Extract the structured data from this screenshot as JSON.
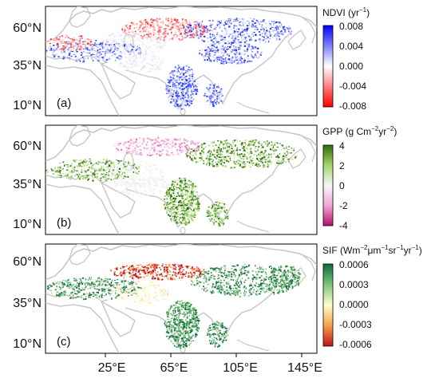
{
  "figure": {
    "panels": [
      {
        "id": "a",
        "label": "(a)",
        "variable": "NDVI",
        "colorbar_title": "NDVI (yr",
        "colorbar_title_sup": "−1",
        "colorbar_title_end": ")",
        "colorbar_ticks": [
          "0.008",
          "0.004",
          "0.000",
          "-0.004",
          "-0.008"
        ],
        "colorscale": [
          "#0000ff",
          "#ffffff",
          "#ff0000"
        ],
        "y_ticks": [
          "60°N",
          "35°N",
          "10°N"
        ]
      },
      {
        "id": "b",
        "label": "(b)",
        "variable": "GPP",
        "colorbar_title": "GPP (g Cm",
        "colorbar_title_sup": "−2",
        "colorbar_title_mid": "yr",
        "colorbar_title_sup2": "−2",
        "colorbar_title_end": ")",
        "colorbar_ticks": [
          "4",
          "2",
          "0",
          "-2",
          "-4"
        ],
        "colorscale": [
          "#2d6a0e",
          "#a6d76a",
          "#f7f7f7",
          "#f2a6d8",
          "#b0106a"
        ],
        "y_ticks": [
          "60°N",
          "35°N",
          "10°N"
        ]
      },
      {
        "id": "c",
        "label": "(c)",
        "variable": "SIF",
        "colorbar_title": "SIF (Wm",
        "colorbar_title_sup": "−2",
        "colorbar_title_mid": "μm",
        "colorbar_title_sup2": "−1",
        "colorbar_title_mid2": "sr",
        "colorbar_title_sup3": "−1",
        "colorbar_title_mid3": "yr",
        "colorbar_title_sup4": "−1",
        "colorbar_title_end": ")",
        "colorbar_ticks": [
          "0.0006",
          "0.0003",
          "0.0000",
          "-0.0003",
          "-0.0006"
        ],
        "colorscale": [
          "#0e6b3a",
          "#7cc57a",
          "#ffffcc",
          "#f6a14a",
          "#c0121b"
        ],
        "y_ticks": [
          "60°N",
          "35°N",
          "10°N"
        ]
      }
    ],
    "x_ticks": [
      "25°E",
      "65°E",
      "105°E",
      "145°E"
    ],
    "coastline_color": "#c8c8c8"
  }
}
